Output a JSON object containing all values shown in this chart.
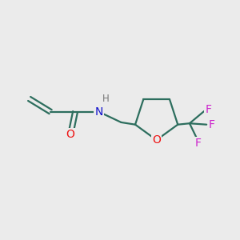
{
  "background_color": "#ebebeb",
  "bond_color": "#2d6e5e",
  "bond_width": 1.6,
  "atom_colors": {
    "O": "#ee1111",
    "N": "#1111cc",
    "F": "#cc22cc",
    "H": "#777777",
    "C": "#2d6e5e"
  },
  "figsize": [
    3.0,
    3.0
  ],
  "dpi": 100,
  "font_size": 9.5
}
